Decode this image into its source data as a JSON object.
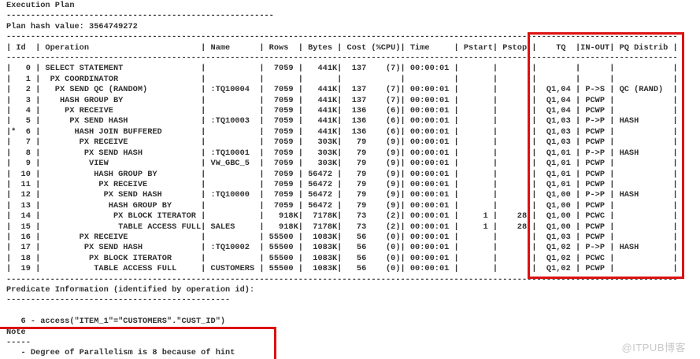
{
  "title": "Execution Plan",
  "plan_hash": "Plan hash value: 3564749272",
  "plan_table": {
    "columns": [
      "Id",
      "Operation",
      "Name",
      "Rows",
      "Bytes",
      "Cost (%CPU)",
      "Time",
      "Pstart",
      "Pstop",
      "TQ",
      "IN-OUT",
      "PQ Distrib"
    ],
    "rows": [
      {
        "id": 0,
        "star": false,
        "depth": 0,
        "operation": "SELECT STATEMENT",
        "name": "",
        "rows": "7059",
        "bytes": "441K",
        "cost": "137",
        "pct": "(7)",
        "time": "00:00:01",
        "pstart": "",
        "pstop": "",
        "tq": "",
        "inout": "",
        "pq": ""
      },
      {
        "id": 1,
        "star": false,
        "depth": 1,
        "operation": "PX COORDINATOR",
        "name": "",
        "rows": "",
        "bytes": "",
        "cost": "",
        "pct": "",
        "time": "",
        "pstart": "",
        "pstop": "",
        "tq": "",
        "inout": "",
        "pq": ""
      },
      {
        "id": 2,
        "star": false,
        "depth": 2,
        "operation": "PX SEND QC (RANDOM)",
        "name": ":TQ10004",
        "rows": "7059",
        "bytes": "441K",
        "cost": "137",
        "pct": "(7)",
        "time": "00:00:01",
        "pstart": "",
        "pstop": "",
        "tq": "Q1,04",
        "inout": "P->S",
        "pq": "QC (RAND)"
      },
      {
        "id": 3,
        "star": false,
        "depth": 3,
        "operation": "HASH GROUP BY",
        "name": "",
        "rows": "7059",
        "bytes": "441K",
        "cost": "137",
        "pct": "(7)",
        "time": "00:00:01",
        "pstart": "",
        "pstop": "",
        "tq": "Q1,04",
        "inout": "PCWP",
        "pq": ""
      },
      {
        "id": 4,
        "star": false,
        "depth": 4,
        "operation": "PX RECEIVE",
        "name": "",
        "rows": "7059",
        "bytes": "441K",
        "cost": "136",
        "pct": "(6)",
        "time": "00:00:01",
        "pstart": "",
        "pstop": "",
        "tq": "Q1,04",
        "inout": "PCWP",
        "pq": ""
      },
      {
        "id": 5,
        "star": false,
        "depth": 5,
        "operation": "PX SEND HASH",
        "name": ":TQ10003",
        "rows": "7059",
        "bytes": "441K",
        "cost": "136",
        "pct": "(6)",
        "time": "00:00:01",
        "pstart": "",
        "pstop": "",
        "tq": "Q1,03",
        "inout": "P->P",
        "pq": "HASH"
      },
      {
        "id": 6,
        "star": true,
        "depth": 6,
        "operation": "HASH JOIN BUFFERED",
        "name": "",
        "rows": "7059",
        "bytes": "441K",
        "cost": "136",
        "pct": "(6)",
        "time": "00:00:01",
        "pstart": "",
        "pstop": "",
        "tq": "Q1,03",
        "inout": "PCWP",
        "pq": ""
      },
      {
        "id": 7,
        "star": false,
        "depth": 7,
        "operation": "PX RECEIVE",
        "name": "",
        "rows": "7059",
        "bytes": "303K",
        "cost": "79",
        "pct": "(9)",
        "time": "00:00:01",
        "pstart": "",
        "pstop": "",
        "tq": "Q1,03",
        "inout": "PCWP",
        "pq": ""
      },
      {
        "id": 8,
        "star": false,
        "depth": 8,
        "operation": "PX SEND HASH",
        "name": ":TQ10001",
        "rows": "7059",
        "bytes": "303K",
        "cost": "79",
        "pct": "(9)",
        "time": "00:00:01",
        "pstart": "",
        "pstop": "",
        "tq": "Q1,01",
        "inout": "P->P",
        "pq": "HASH"
      },
      {
        "id": 9,
        "star": false,
        "depth": 9,
        "operation": "VIEW",
        "name": "VW_GBC_5",
        "rows": "7059",
        "bytes": "303K",
        "cost": "79",
        "pct": "(9)",
        "time": "00:00:01",
        "pstart": "",
        "pstop": "",
        "tq": "Q1,01",
        "inout": "PCWP",
        "pq": ""
      },
      {
        "id": 10,
        "star": false,
        "depth": 10,
        "operation": "HASH GROUP BY",
        "name": "",
        "rows": "7059",
        "bytes": "56472",
        "cost": "79",
        "pct": "(9)",
        "time": "00:00:01",
        "pstart": "",
        "pstop": "",
        "tq": "Q1,01",
        "inout": "PCWP",
        "pq": ""
      },
      {
        "id": 11,
        "star": false,
        "depth": 11,
        "operation": "PX RECEIVE",
        "name": "",
        "rows": "7059",
        "bytes": "56472",
        "cost": "79",
        "pct": "(9)",
        "time": "00:00:01",
        "pstart": "",
        "pstop": "",
        "tq": "Q1,01",
        "inout": "PCWP",
        "pq": ""
      },
      {
        "id": 12,
        "star": false,
        "depth": 12,
        "operation": "PX SEND HASH",
        "name": ":TQ10000",
        "rows": "7059",
        "bytes": "56472",
        "cost": "79",
        "pct": "(9)",
        "time": "00:00:01",
        "pstart": "",
        "pstop": "",
        "tq": "Q1,00",
        "inout": "P->P",
        "pq": "HASH"
      },
      {
        "id": 13,
        "star": false,
        "depth": 13,
        "operation": "HASH GROUP BY",
        "name": "",
        "rows": "7059",
        "bytes": "56472",
        "cost": "79",
        "pct": "(9)",
        "time": "00:00:01",
        "pstart": "",
        "pstop": "",
        "tq": "Q1,00",
        "inout": "PCWP",
        "pq": ""
      },
      {
        "id": 14,
        "star": false,
        "depth": 14,
        "operation": "PX BLOCK ITERATOR",
        "name": "",
        "rows": "918K",
        "bytes": "7178K",
        "cost": "73",
        "pct": "(2)",
        "time": "00:00:01",
        "pstart": "1",
        "pstop": "28",
        "tq": "Q1,00",
        "inout": "PCWC",
        "pq": ""
      },
      {
        "id": 15,
        "star": false,
        "depth": 15,
        "operation": "TABLE ACCESS FULL",
        "name": "SALES",
        "rows": "918K",
        "bytes": "7178K",
        "cost": "73",
        "pct": "(2)",
        "time": "00:00:01",
        "pstart": "1",
        "pstop": "28",
        "tq": "Q1,00",
        "inout": "PCWP",
        "pq": ""
      },
      {
        "id": 16,
        "star": false,
        "depth": 7,
        "operation": "PX RECEIVE",
        "name": "",
        "rows": "55500",
        "bytes": "1083K",
        "cost": "56",
        "pct": "(0)",
        "time": "00:00:01",
        "pstart": "",
        "pstop": "",
        "tq": "Q1,03",
        "inout": "PCWP",
        "pq": ""
      },
      {
        "id": 17,
        "star": false,
        "depth": 8,
        "operation": "PX SEND HASH",
        "name": ":TQ10002",
        "rows": "55500",
        "bytes": "1083K",
        "cost": "56",
        "pct": "(0)",
        "time": "00:00:01",
        "pstart": "",
        "pstop": "",
        "tq": "Q1,02",
        "inout": "P->P",
        "pq": "HASH"
      },
      {
        "id": 18,
        "star": false,
        "depth": 9,
        "operation": "PX BLOCK ITERATOR",
        "name": "",
        "rows": "55500",
        "bytes": "1083K",
        "cost": "56",
        "pct": "(0)",
        "time": "00:00:01",
        "pstart": "",
        "pstop": "",
        "tq": "Q1,02",
        "inout": "PCWC",
        "pq": ""
      },
      {
        "id": 19,
        "star": false,
        "depth": 10,
        "operation": "TABLE ACCESS FULL",
        "name": "CUSTOMERS",
        "rows": "55500",
        "bytes": "1083K",
        "cost": "56",
        "pct": "(0)",
        "time": "00:00:01",
        "pstart": "",
        "pstop": "",
        "tq": "Q1,02",
        "inout": "PCWP",
        "pq": ""
      }
    ]
  },
  "predicate_section": {
    "title": "Predicate Information (identified by operation id):",
    "predicates": [
      "6 - access(\"ITEM_1\"=\"CUSTOMERS\".\"CUST_ID\")"
    ]
  },
  "note_section": {
    "title": "Note",
    "lines": [
      "- Degree of Parallelism is 8 because of hint"
    ]
  },
  "watermark": "@ITPUB博客",
  "highlight_color": "#dd1111"
}
